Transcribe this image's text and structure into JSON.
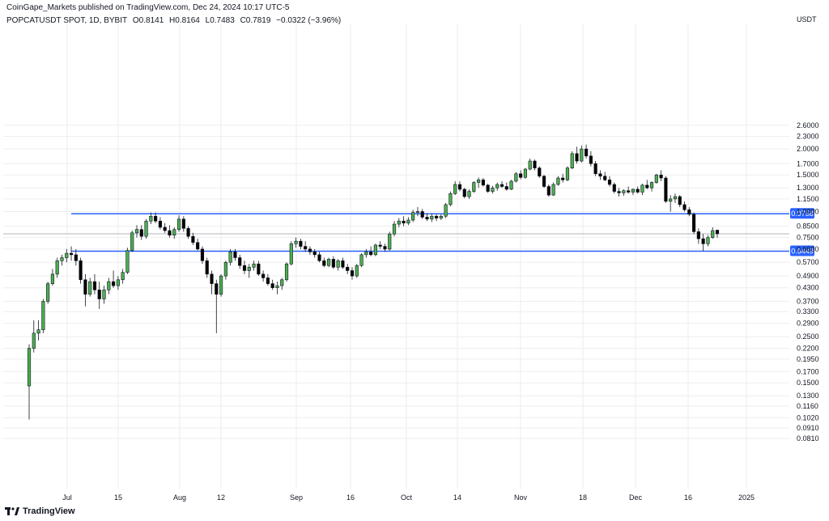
{
  "header": {
    "published": "CoinGape_Markets published on TradingView.com, Dec 24, 2024 10:17 UTC-5",
    "symbol": "POPCATUSDT SPOT, 1D, BYBIT",
    "open": "O0.8141",
    "high": "H0.8164",
    "low": "L0.7483",
    "close": "C0.7819",
    "change": "−0.0322 (−3.96%)"
  },
  "brand": "TradingView",
  "colors": {
    "up": "#4caf50",
    "down": "#000000",
    "level": "#2962ff",
    "grid": "#eeeeee"
  },
  "chart_data": {
    "type": "candlestick",
    "currency": "USDT",
    "y_scale": "log",
    "ylim": [
      0.077,
      2.9
    ],
    "y_ticks": [
      "2.6000",
      "2.3000",
      "2.0000",
      "1.7000",
      "1.5000",
      "1.3000",
      "1.1500",
      "1.0000",
      "0.8500",
      "0.7500",
      "0.6600",
      "0.5700",
      "0.4900",
      "0.4300",
      "0.3700",
      "0.3300",
      "0.2900",
      "0.2500",
      "0.2200",
      "0.1950",
      "0.1700",
      "0.1500",
      "0.1300",
      "0.1160",
      "0.1020",
      "0.0910",
      "0.0810"
    ],
    "x_ticks": [
      "Jul",
      "15",
      "Aug",
      "12",
      "Sep",
      "16",
      "Oct",
      "14",
      "Nov",
      "18",
      "Dec",
      "16",
      "2025"
    ],
    "levels": [
      {
        "value": 0.9758,
        "label": "0.9758"
      },
      {
        "value": 0.6449,
        "label": "0.6449"
      }
    ],
    "last_price": 0.7819,
    "candles": [
      [
        0.145,
        0.23,
        0.1,
        0.22
      ],
      [
        0.22,
        0.3,
        0.21,
        0.26
      ],
      [
        0.26,
        0.3,
        0.24,
        0.27
      ],
      [
        0.27,
        0.38,
        0.26,
        0.37
      ],
      [
        0.37,
        0.46,
        0.36,
        0.45
      ],
      [
        0.45,
        0.53,
        0.44,
        0.5
      ],
      [
        0.5,
        0.6,
        0.48,
        0.58
      ],
      [
        0.58,
        0.62,
        0.55,
        0.6
      ],
      [
        0.6,
        0.66,
        0.57,
        0.63
      ],
      [
        0.63,
        0.68,
        0.58,
        0.62
      ],
      [
        0.62,
        0.66,
        0.55,
        0.58
      ],
      [
        0.58,
        0.6,
        0.45,
        0.47
      ],
      [
        0.47,
        0.5,
        0.35,
        0.4
      ],
      [
        0.4,
        0.48,
        0.39,
        0.46
      ],
      [
        0.46,
        0.5,
        0.4,
        0.42
      ],
      [
        0.42,
        0.46,
        0.34,
        0.38
      ],
      [
        0.38,
        0.44,
        0.36,
        0.42
      ],
      [
        0.42,
        0.48,
        0.4,
        0.46
      ],
      [
        0.46,
        0.52,
        0.43,
        0.44
      ],
      [
        0.44,
        0.49,
        0.42,
        0.47
      ],
      [
        0.47,
        0.53,
        0.45,
        0.51
      ],
      [
        0.51,
        0.67,
        0.5,
        0.65
      ],
      [
        0.65,
        0.81,
        0.64,
        0.79
      ],
      [
        0.79,
        0.86,
        0.75,
        0.82
      ],
      [
        0.82,
        0.86,
        0.73,
        0.76
      ],
      [
        0.76,
        0.92,
        0.74,
        0.9
      ],
      [
        0.9,
        0.99,
        0.87,
        0.95
      ],
      [
        0.95,
        0.99,
        0.88,
        0.9
      ],
      [
        0.9,
        0.94,
        0.82,
        0.84
      ],
      [
        0.84,
        0.88,
        0.79,
        0.81
      ],
      [
        0.81,
        0.86,
        0.75,
        0.77
      ],
      [
        0.77,
        0.84,
        0.74,
        0.82
      ],
      [
        0.82,
        0.96,
        0.8,
        0.92
      ],
      [
        0.92,
        0.95,
        0.8,
        0.83
      ],
      [
        0.83,
        0.85,
        0.74,
        0.76
      ],
      [
        0.76,
        0.79,
        0.69,
        0.71
      ],
      [
        0.71,
        0.74,
        0.65,
        0.66
      ],
      [
        0.66,
        0.68,
        0.56,
        0.58
      ],
      [
        0.58,
        0.6,
        0.48,
        0.5
      ],
      [
        0.5,
        0.52,
        0.4,
        0.45
      ],
      [
        0.45,
        0.47,
        0.26,
        0.4
      ],
      [
        0.4,
        0.5,
        0.39,
        0.49
      ],
      [
        0.49,
        0.58,
        0.47,
        0.57
      ],
      [
        0.57,
        0.66,
        0.55,
        0.64
      ],
      [
        0.64,
        0.66,
        0.58,
        0.6
      ],
      [
        0.6,
        0.62,
        0.53,
        0.55
      ],
      [
        0.55,
        0.58,
        0.5,
        0.52
      ],
      [
        0.52,
        0.56,
        0.48,
        0.54
      ],
      [
        0.54,
        0.58,
        0.52,
        0.56
      ],
      [
        0.56,
        0.58,
        0.49,
        0.5
      ],
      [
        0.5,
        0.52,
        0.46,
        0.48
      ],
      [
        0.48,
        0.5,
        0.44,
        0.45
      ],
      [
        0.45,
        0.47,
        0.42,
        0.43
      ],
      [
        0.43,
        0.46,
        0.4,
        0.44
      ],
      [
        0.44,
        0.48,
        0.42,
        0.47
      ],
      [
        0.47,
        0.57,
        0.46,
        0.56
      ],
      [
        0.56,
        0.72,
        0.55,
        0.7
      ],
      [
        0.7,
        0.75,
        0.67,
        0.72
      ],
      [
        0.72,
        0.74,
        0.66,
        0.68
      ],
      [
        0.68,
        0.72,
        0.64,
        0.66
      ],
      [
        0.66,
        0.68,
        0.62,
        0.64
      ],
      [
        0.64,
        0.66,
        0.6,
        0.62
      ],
      [
        0.62,
        0.64,
        0.57,
        0.58
      ],
      [
        0.58,
        0.6,
        0.54,
        0.55
      ],
      [
        0.55,
        0.6,
        0.54,
        0.59
      ],
      [
        0.59,
        0.61,
        0.53,
        0.54
      ],
      [
        0.54,
        0.59,
        0.52,
        0.58
      ],
      [
        0.58,
        0.6,
        0.53,
        0.54
      ],
      [
        0.54,
        0.56,
        0.5,
        0.52
      ],
      [
        0.52,
        0.54,
        0.47,
        0.49
      ],
      [
        0.49,
        0.56,
        0.48,
        0.55
      ],
      [
        0.55,
        0.63,
        0.54,
        0.62
      ],
      [
        0.62,
        0.66,
        0.6,
        0.64
      ],
      [
        0.64,
        0.68,
        0.61,
        0.62
      ],
      [
        0.62,
        0.7,
        0.61,
        0.69
      ],
      [
        0.69,
        0.72,
        0.66,
        0.68
      ],
      [
        0.68,
        0.7,
        0.64,
        0.66
      ],
      [
        0.66,
        0.8,
        0.65,
        0.78
      ],
      [
        0.78,
        0.9,
        0.76,
        0.87
      ],
      [
        0.87,
        0.93,
        0.84,
        0.9
      ],
      [
        0.9,
        0.95,
        0.85,
        0.88
      ],
      [
        0.88,
        0.94,
        0.86,
        0.91
      ],
      [
        0.91,
        1.02,
        0.89,
        0.99
      ],
      [
        0.99,
        1.05,
        0.95,
        1.0
      ],
      [
        1.0,
        1.03,
        0.92,
        0.94
      ],
      [
        0.94,
        0.98,
        0.9,
        0.92
      ],
      [
        0.92,
        0.98,
        0.89,
        0.95
      ],
      [
        0.95,
        0.97,
        0.9,
        0.93
      ],
      [
        0.93,
        0.97,
        0.91,
        0.95
      ],
      [
        0.95,
        1.1,
        0.93,
        1.08
      ],
      [
        1.08,
        1.25,
        1.06,
        1.22
      ],
      [
        1.22,
        1.4,
        1.2,
        1.35
      ],
      [
        1.35,
        1.4,
        1.25,
        1.28
      ],
      [
        1.28,
        1.3,
        1.16,
        1.18
      ],
      [
        1.18,
        1.28,
        1.15,
        1.25
      ],
      [
        1.25,
        1.4,
        1.23,
        1.38
      ],
      [
        1.38,
        1.46,
        1.3,
        1.42
      ],
      [
        1.42,
        1.45,
        1.32,
        1.34
      ],
      [
        1.34,
        1.36,
        1.23,
        1.25
      ],
      [
        1.25,
        1.33,
        1.22,
        1.3
      ],
      [
        1.3,
        1.38,
        1.26,
        1.35
      ],
      [
        1.35,
        1.4,
        1.3,
        1.32
      ],
      [
        1.32,
        1.38,
        1.26,
        1.28
      ],
      [
        1.28,
        1.42,
        1.27,
        1.4
      ],
      [
        1.4,
        1.55,
        1.38,
        1.52
      ],
      [
        1.52,
        1.58,
        1.43,
        1.46
      ],
      [
        1.46,
        1.62,
        1.44,
        1.6
      ],
      [
        1.6,
        1.8,
        1.58,
        1.75
      ],
      [
        1.75,
        1.78,
        1.58,
        1.62
      ],
      [
        1.62,
        1.65,
        1.45,
        1.48
      ],
      [
        1.48,
        1.5,
        1.3,
        1.32
      ],
      [
        1.32,
        1.35,
        1.18,
        1.2
      ],
      [
        1.2,
        1.38,
        1.19,
        1.35
      ],
      [
        1.35,
        1.48,
        1.33,
        1.45
      ],
      [
        1.45,
        1.52,
        1.38,
        1.42
      ],
      [
        1.42,
        1.65,
        1.4,
        1.62
      ],
      [
        1.62,
        1.95,
        1.6,
        1.9
      ],
      [
        1.9,
        2.05,
        1.7,
        1.75
      ],
      [
        1.75,
        2.08,
        1.72,
        2.0
      ],
      [
        2.0,
        2.1,
        1.8,
        1.85
      ],
      [
        1.85,
        1.95,
        1.65,
        1.7
      ],
      [
        1.7,
        1.75,
        1.48,
        1.52
      ],
      [
        1.52,
        1.58,
        1.42,
        1.48
      ],
      [
        1.48,
        1.55,
        1.4,
        1.42
      ],
      [
        1.42,
        1.48,
        1.32,
        1.35
      ],
      [
        1.35,
        1.38,
        1.22,
        1.25
      ],
      [
        1.25,
        1.3,
        1.18,
        1.23
      ],
      [
        1.23,
        1.28,
        1.19,
        1.26
      ],
      [
        1.26,
        1.32,
        1.22,
        1.24
      ],
      [
        1.24,
        1.29,
        1.2,
        1.28
      ],
      [
        1.28,
        1.32,
        1.22,
        1.24
      ],
      [
        1.24,
        1.36,
        1.2,
        1.34
      ],
      [
        1.34,
        1.42,
        1.28,
        1.3
      ],
      [
        1.3,
        1.4,
        1.25,
        1.38
      ],
      [
        1.38,
        1.52,
        1.36,
        1.5
      ],
      [
        1.5,
        1.58,
        1.4,
        1.45
      ],
      [
        1.45,
        1.48,
        1.1,
        1.12
      ],
      [
        1.12,
        1.2,
        1.0,
        1.15
      ],
      [
        1.15,
        1.22,
        1.1,
        1.18
      ],
      [
        1.18,
        1.2,
        1.05,
        1.08
      ],
      [
        1.08,
        1.12,
        1.0,
        1.02
      ],
      [
        1.02,
        1.05,
        0.95,
        0.97
      ],
      [
        0.97,
        0.99,
        0.78,
        0.8
      ],
      [
        0.8,
        0.83,
        0.7,
        0.74
      ],
      [
        0.74,
        0.78,
        0.6449,
        0.7
      ],
      [
        0.7,
        0.77,
        0.68,
        0.75
      ],
      [
        0.75,
        0.84,
        0.74,
        0.81
      ],
      [
        0.8141,
        0.8164,
        0.7483,
        0.7819
      ]
    ]
  }
}
